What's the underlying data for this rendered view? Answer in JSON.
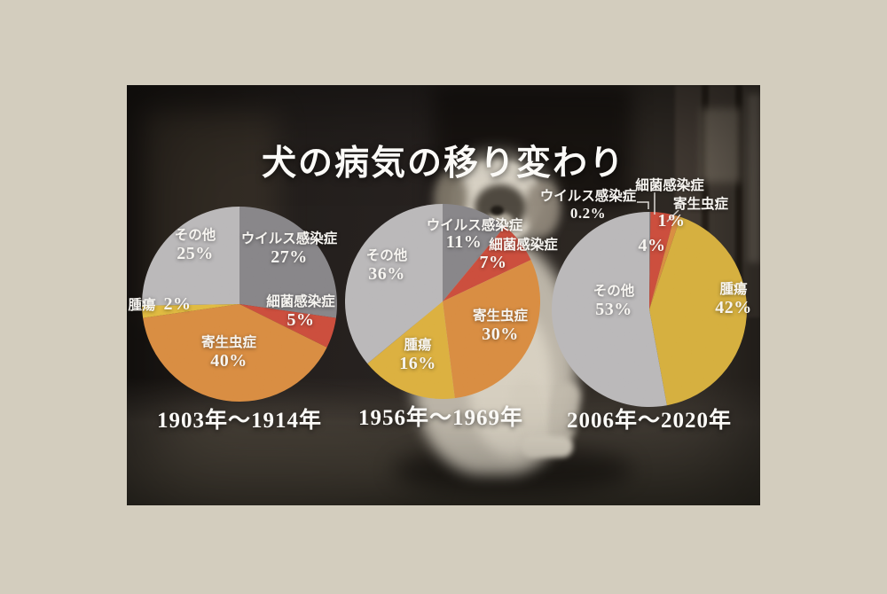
{
  "page": {
    "title": "犬の病気の移り変わり",
    "background_color": "#d3cdbe"
  },
  "chart_data": [
    {
      "type": "pie",
      "title": "1903年〜1914年",
      "start_angle": "top",
      "direction": "clockwise",
      "slices": [
        {
          "label": "ウイルス感染症",
          "value": 27,
          "display": "27%",
          "color": "#7c797d"
        },
        {
          "label": "細菌感染症",
          "value": 5,
          "display": "5%",
          "color": "#c63b28"
        },
        {
          "label": "寄生虫症",
          "value": 40,
          "display": "40%",
          "color": "#d5812d"
        },
        {
          "label": "腫瘍",
          "value": 2,
          "display": "2%",
          "color": "#ddb42c"
        },
        {
          "label": "その他",
          "value": 25,
          "display": "25%",
          "color": "#b3b1b2"
        }
      ]
    },
    {
      "type": "pie",
      "title": "1956年〜1969年",
      "start_angle": "top",
      "direction": "clockwise",
      "slices": [
        {
          "label": "ウイルス感染症",
          "value": 11,
          "display": "11%",
          "color": "#7c797d"
        },
        {
          "label": "細菌感染症",
          "value": 7,
          "display": "7%",
          "color": "#c63b28"
        },
        {
          "label": "寄生虫症",
          "value": 30,
          "display": "30%",
          "color": "#d5812d"
        },
        {
          "label": "腫瘍",
          "value": 16,
          "display": "16%",
          "color": "#d8a82b"
        },
        {
          "label": "その他",
          "value": 36,
          "display": "36%",
          "color": "#b3b1b2"
        }
      ]
    },
    {
      "type": "pie",
      "title": "2006年〜2020年",
      "start_angle": "top",
      "direction": "clockwise",
      "slices": [
        {
          "label": "ウイルス感染症",
          "value": 0.2,
          "display": "0.2%",
          "color": "#7c797d"
        },
        {
          "label": "細菌感染症",
          "value": 4,
          "display": "4%",
          "color": "#c63b28"
        },
        {
          "label": "寄生虫症",
          "value": 1,
          "display": "1%",
          "color": "#d5812d"
        },
        {
          "label": "腫瘍",
          "value": 42,
          "display": "42%",
          "color": "#d2a72a"
        },
        {
          "label": "その他",
          "value": 53,
          "display": "53%",
          "color": "#b3b1b2"
        }
      ]
    }
  ]
}
